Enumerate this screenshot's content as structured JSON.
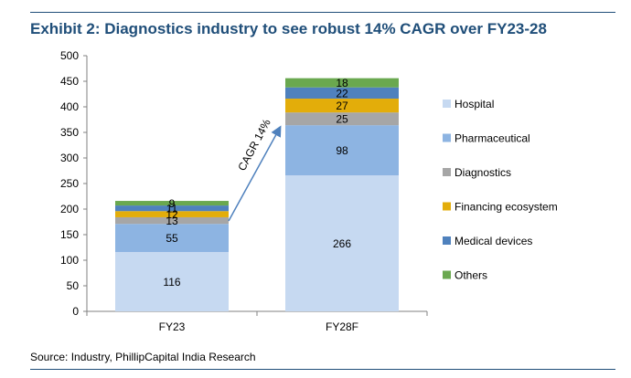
{
  "title": "Exhibit 2:  Diagnostics industry to see robust 14% CAGR over FY23-28",
  "source": "Source: Industry, PhillipCapital India Research",
  "chart_data": {
    "type": "bar",
    "stacked": true,
    "categories": [
      "FY23",
      "FY28F"
    ],
    "ylim": [
      0,
      500
    ],
    "yticks": [
      0,
      50,
      100,
      150,
      200,
      250,
      300,
      350,
      400,
      450,
      500
    ],
    "series": [
      {
        "name": "Hospital",
        "color": "#c6d9f1",
        "values": [
          116,
          266
        ]
      },
      {
        "name": "Pharmaceutical",
        "color": "#8db4e2",
        "values": [
          55,
          98
        ]
      },
      {
        "name": "Diagnostics",
        "color": "#a6a6a6",
        "values": [
          13,
          25
        ]
      },
      {
        "name": "Financing ecosystem",
        "color": "#e3ad0a",
        "values": [
          12,
          27
        ]
      },
      {
        "name": "Medical devices",
        "color": "#4f81bd",
        "values": [
          11,
          22
        ]
      },
      {
        "name": "Others",
        "color": "#6aa84f",
        "values": [
          9,
          18
        ]
      }
    ],
    "annotation": "CAGR 14%",
    "legend_position": "right"
  }
}
